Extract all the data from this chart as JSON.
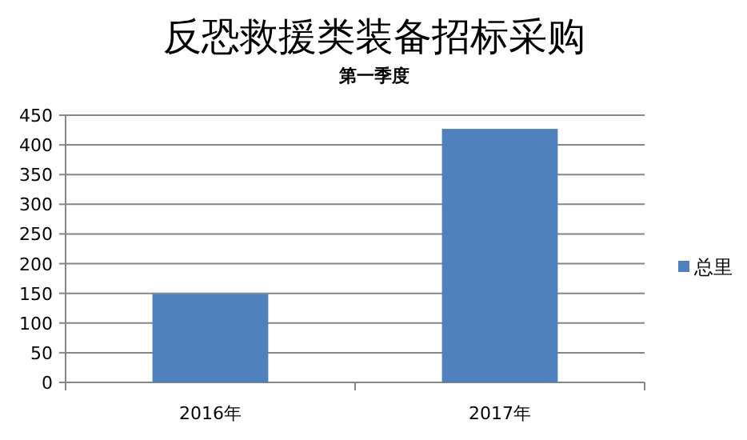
{
  "chart_data": {
    "type": "bar",
    "title": "反恐救援类装备招标采购",
    "subtitle": "第一季度",
    "categories": [
      "2016年",
      "2017年"
    ],
    "series": [
      {
        "name": "总里",
        "color": "#4f81bd",
        "values": [
          149,
          427
        ]
      }
    ],
    "ylim": [
      0,
      450
    ],
    "yticks": [
      0,
      50,
      100,
      150,
      200,
      250,
      300,
      350,
      400,
      450
    ],
    "grid": "y",
    "legend": "right"
  }
}
